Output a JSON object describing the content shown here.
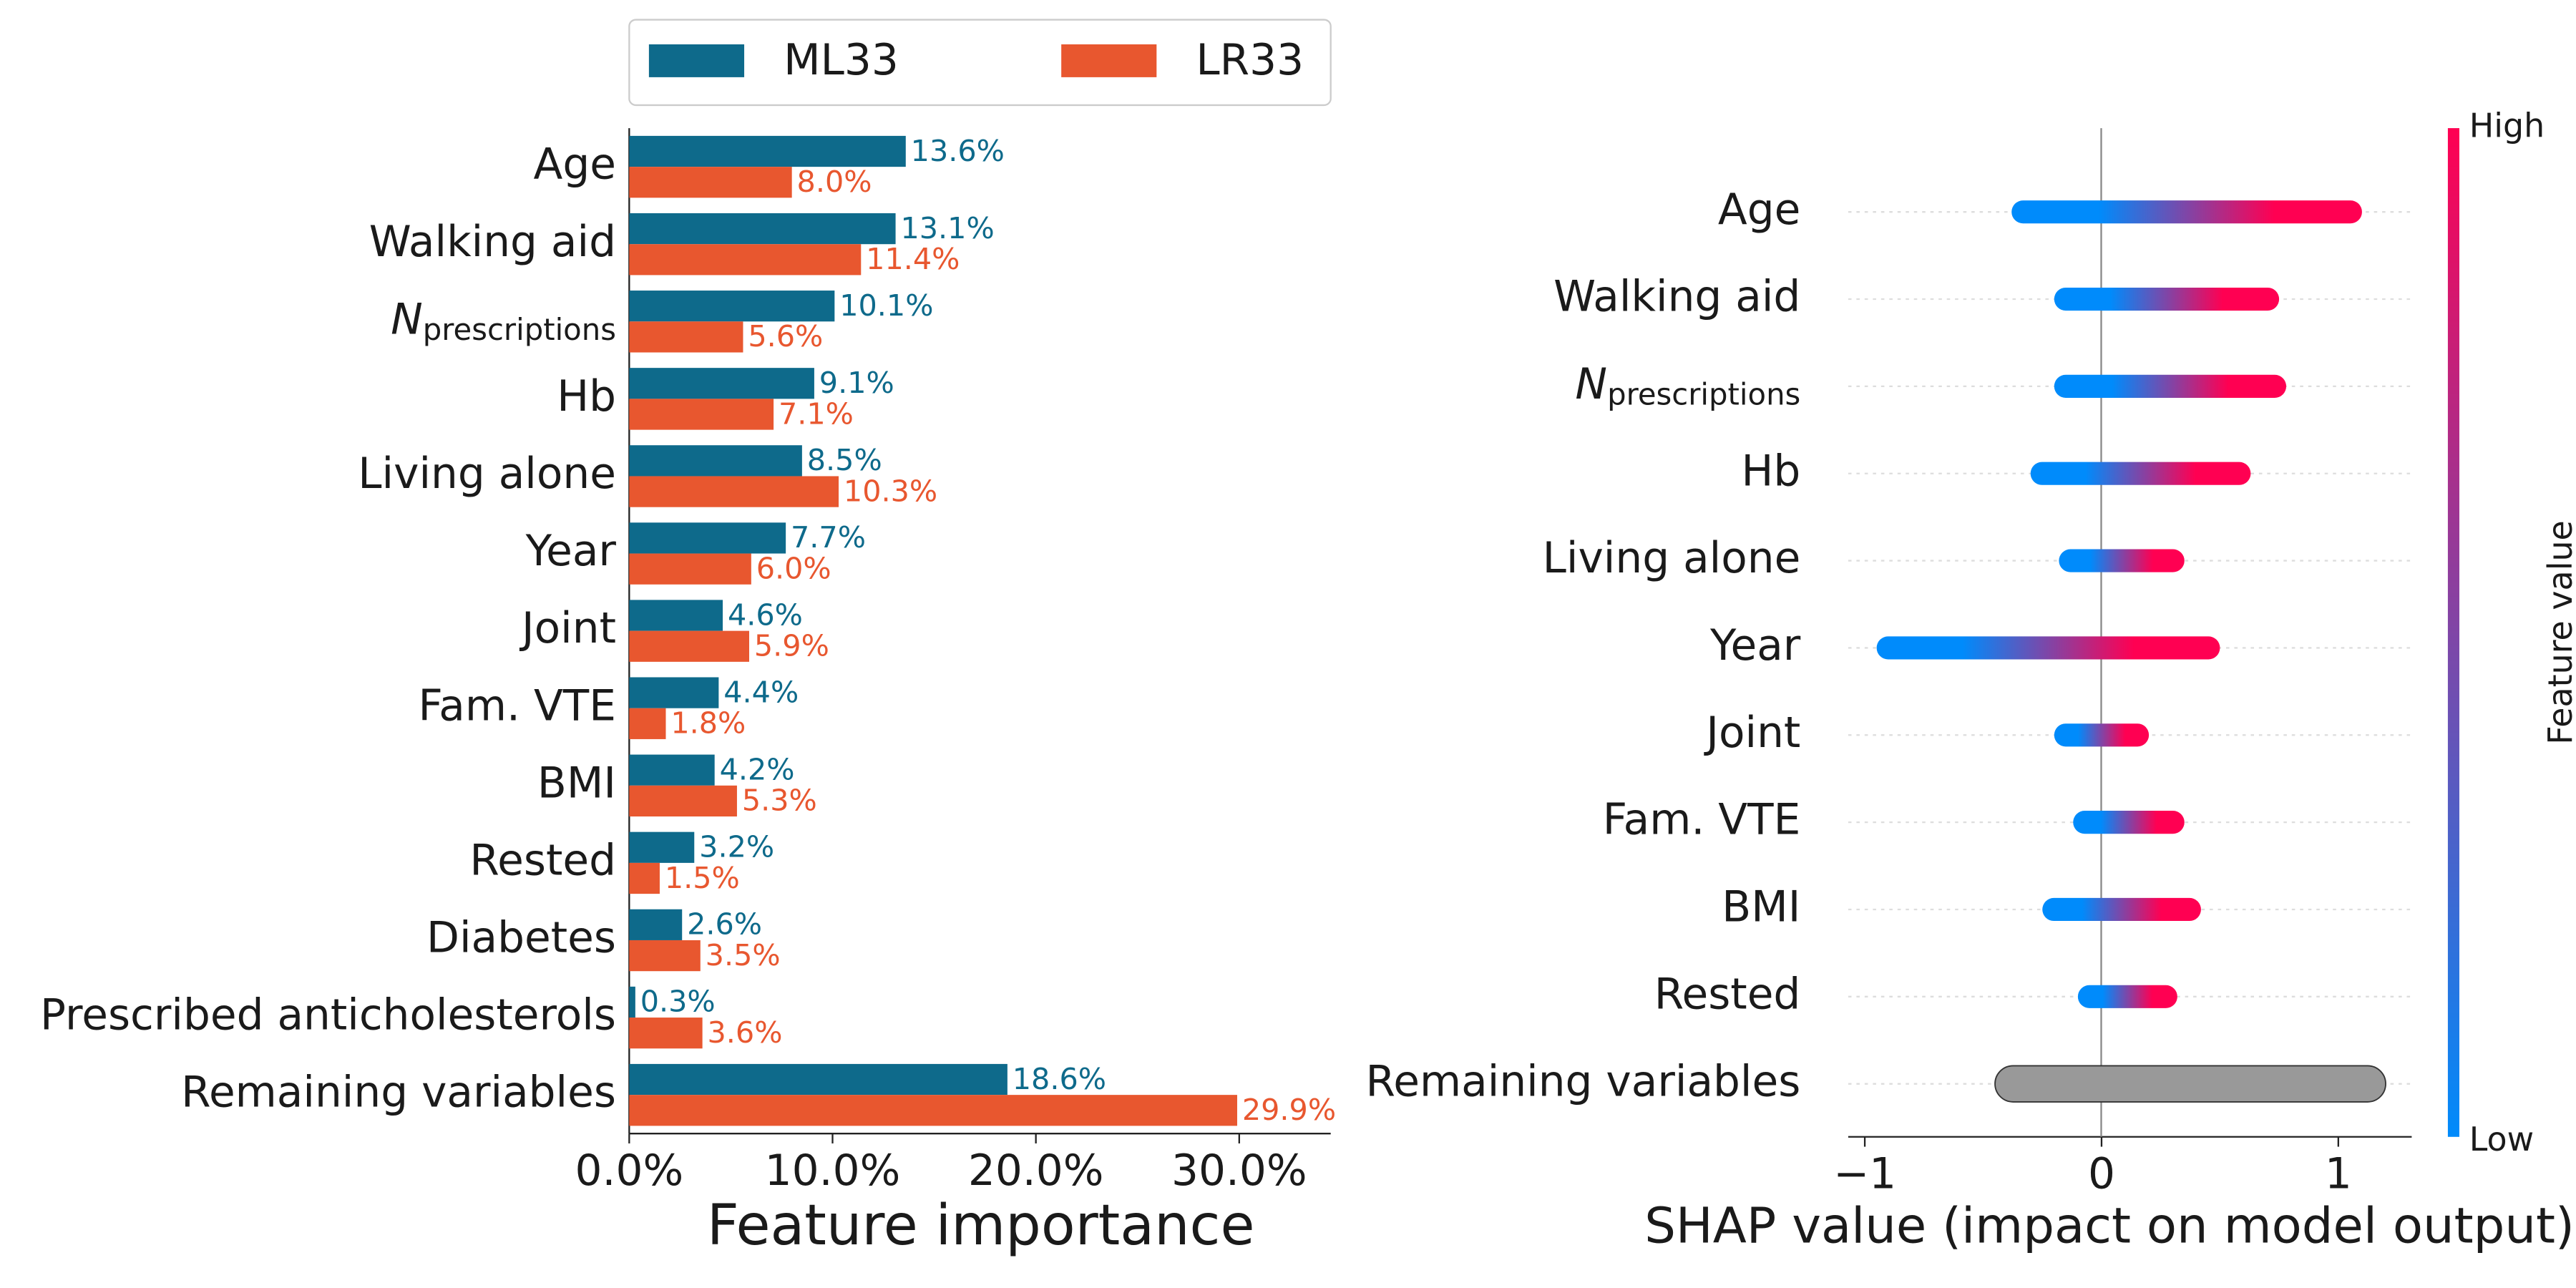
{
  "chart_data": [
    {
      "type": "bar",
      "categories": [
        "Age",
        "Walking aid",
        {
          "label": "N",
          "subscript": "prescriptions"
        },
        "Hb",
        "Living alone",
        "Year",
        "Joint",
        "Fam. VTE",
        "BMI",
        "Rested",
        "Diabetes",
        "Prescribed anticholesterols",
        "Remaining variables"
      ],
      "series": [
        {
          "name": "ML33",
          "color": "#0e6a8b",
          "values": [
            13.6,
            13.1,
            10.1,
            9.1,
            8.5,
            7.7,
            4.6,
            4.4,
            4.2,
            3.2,
            2.6,
            0.3,
            18.6
          ],
          "value_labels": [
            "13.6%",
            "13.1%",
            "10.1%",
            "9.1%",
            "8.5%",
            "7.7%",
            "4.6%",
            "4.4%",
            "4.2%",
            "3.2%",
            "2.6%",
            "0.3%",
            "18.6%"
          ]
        },
        {
          "name": "LR33",
          "color": "#e8572f",
          "values": [
            8.0,
            11.4,
            5.6,
            7.1,
            10.3,
            6.0,
            5.9,
            1.8,
            5.3,
            1.5,
            3.5,
            3.6,
            29.9
          ],
          "value_labels": [
            "8.0%",
            "11.4%",
            "5.6%",
            "7.1%",
            "10.3%",
            "6.0%",
            "5.9%",
            "1.8%",
            "5.3%",
            "1.5%",
            "3.5%",
            "3.6%",
            "29.9%"
          ]
        }
      ],
      "xlabel": "Feature importance",
      "xlim": [
        0,
        34.5
      ],
      "xticks": [
        {
          "value": 0,
          "label": "0.0%"
        },
        {
          "value": 10,
          "label": "10.0%"
        },
        {
          "value": 20,
          "label": "20.0%"
        },
        {
          "value": 30,
          "label": "30.0%"
        }
      ],
      "legend": "top"
    },
    {
      "type": "beeswarm",
      "categories": [
        "Age",
        "Walking aid",
        {
          "label": "N",
          "subscript": "prescriptions"
        },
        "Hb",
        "Living alone",
        "Year",
        "Joint",
        "Fam. VTE",
        "BMI",
        "Rested",
        "Remaining variables"
      ],
      "x_min": [
        -0.38,
        -0.2,
        -0.2,
        -0.3,
        -0.18,
        -0.95,
        -0.2,
        -0.12,
        -0.25,
        -0.1,
        -0.45
      ],
      "x_max": [
        1.1,
        0.75,
        0.78,
        0.63,
        0.35,
        0.5,
        0.2,
        0.35,
        0.42,
        0.32,
        1.2
      ],
      "xlabel": "SHAP value (impact on model output)",
      "xlim": [
        -1.07,
        1.31
      ],
      "xticks": [
        {
          "value": -1,
          "label": "−1"
        },
        0,
        1
      ],
      "remainder_color": "#999999",
      "colorbar": {
        "label": "Feature value",
        "high": "High",
        "low": "Low",
        "colors": [
          "#008bfb",
          "#ff0052"
        ]
      }
    }
  ]
}
